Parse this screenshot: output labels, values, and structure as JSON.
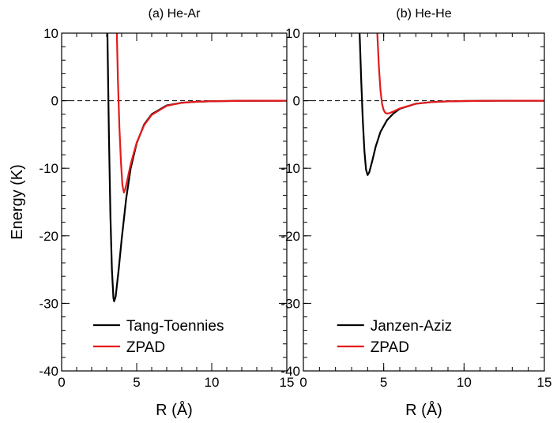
{
  "chart_data": [
    {
      "type": "line",
      "title": "(a) He-Ar",
      "xlabel": "R (Å)",
      "ylabel": "Energy (K)",
      "xlim": [
        0,
        15
      ],
      "ylim": [
        -40,
        10
      ],
      "xticks": [
        0,
        5,
        10,
        15
      ],
      "yticks": [
        -40,
        -30,
        -20,
        -10,
        0,
        10
      ],
      "x_minor_step": 1,
      "y_minor_step": 2,
      "hline": 0,
      "legend": "lower center",
      "series": [
        {
          "name": "Tang-Toennies",
          "color": "#000000",
          "x": [
            3.05,
            3.15,
            3.25,
            3.35,
            3.45,
            3.5,
            3.6,
            3.8,
            4.0,
            4.3,
            4.6,
            5.0,
            5.5,
            6.0,
            7,
            8,
            9,
            10,
            12,
            15
          ],
          "values": [
            10,
            -5,
            -17,
            -25,
            -29.2,
            -29.7,
            -29,
            -25,
            -20.5,
            -14.5,
            -10,
            -6.3,
            -3.5,
            -2.0,
            -0.7,
            -0.3,
            -0.15,
            -0.08,
            -0.02,
            0
          ]
        },
        {
          "name": "ZPAD",
          "color": "#e41a1c",
          "x": [
            3.68,
            3.75,
            3.85,
            3.95,
            4.05,
            4.15,
            4.25,
            4.4,
            4.6,
            5.0,
            5.5,
            6,
            7,
            8,
            9,
            10,
            12,
            15
          ],
          "values": [
            10,
            3,
            -4,
            -9,
            -12.5,
            -13.6,
            -13,
            -11.5,
            -9.4,
            -6.2,
            -3.6,
            -2.1,
            -0.75,
            -0.32,
            -0.15,
            -0.08,
            -0.02,
            0
          ]
        }
      ]
    },
    {
      "type": "line",
      "title": "(b) He-He",
      "xlabel": "R (Å)",
      "xlim": [
        0,
        15
      ],
      "ylim": [
        -40,
        10
      ],
      "xticks": [
        0,
        5,
        10,
        15
      ],
      "yticks": [
        -40,
        -30,
        -20,
        -10,
        0,
        10
      ],
      "x_minor_step": 1,
      "y_minor_step": 2,
      "hline": 0,
      "legend": "lower center",
      "series": [
        {
          "name": "Janzen-Aziz",
          "color": "#000000",
          "x": [
            3.5,
            3.6,
            3.7,
            3.8,
            3.9,
            4.0,
            4.1,
            4.3,
            4.5,
            4.8,
            5.2,
            5.6,
            6,
            7,
            8,
            9,
            10,
            12,
            15
          ],
          "values": [
            10,
            3,
            -3,
            -7.5,
            -10.2,
            -11,
            -10.6,
            -8.8,
            -6.8,
            -4.6,
            -2.9,
            -1.9,
            -1.2,
            -0.45,
            -0.2,
            -0.1,
            -0.05,
            -0.01,
            0
          ]
        },
        {
          "name": "ZPAD",
          "color": "#e41a1c",
          "x": [
            4.6,
            4.7,
            4.8,
            4.9,
            5.0,
            5.1,
            5.2,
            5.35,
            5.6,
            6,
            7,
            8,
            9,
            10,
            12,
            15
          ],
          "values": [
            10,
            5,
            1.5,
            -0.5,
            -1.4,
            -1.8,
            -1.9,
            -1.85,
            -1.6,
            -1.15,
            -0.45,
            -0.2,
            -0.1,
            -0.05,
            -0.01,
            0
          ]
        }
      ]
    }
  ]
}
